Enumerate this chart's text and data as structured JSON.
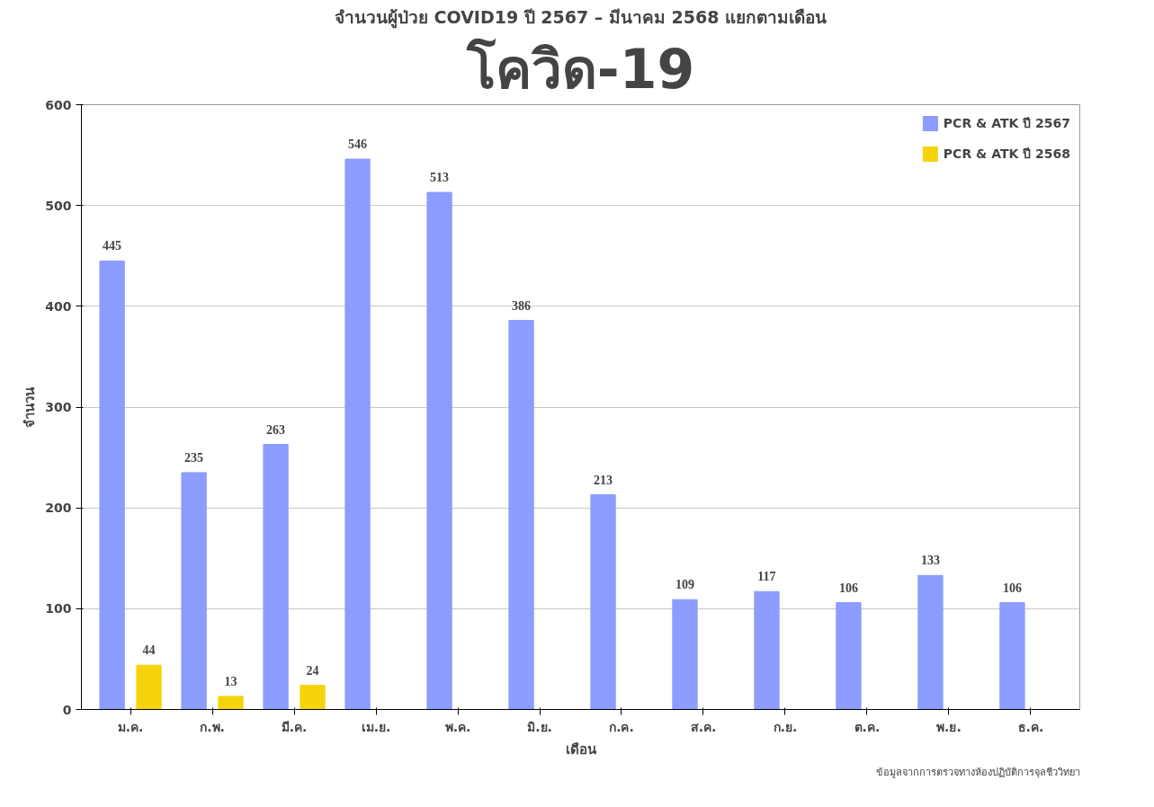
{
  "chart_data": {
    "type": "bar",
    "title": "จำนวนผู้ป่วย COVID19 ปี 2567 – มีนาคม 2568 แยกตามเดือน",
    "subtitle": "โควิด-19",
    "xlabel": "เดือน",
    "ylabel": "จำนวน",
    "categories": [
      "ม.ค.",
      "ก.พ.",
      "มี.ค.",
      "เม.ย.",
      "พ.ค.",
      "มิ.ย.",
      "ก.ค.",
      "ส.ค.",
      "ก.ย.",
      "ต.ค.",
      "พ.ย.",
      "ธ.ค."
    ],
    "series": [
      {
        "name": "PCR & ATK ปี 2567",
        "color": "#8c9cff",
        "values": [
          445,
          235,
          263,
          546,
          513,
          386,
          213,
          109,
          117,
          106,
          133,
          106
        ]
      },
      {
        "name": "PCR & ATK ปี 2568",
        "color": "#f5d40c",
        "values": [
          44,
          13,
          24,
          null,
          null,
          null,
          null,
          null,
          null,
          null,
          null,
          null
        ]
      }
    ],
    "ylim": [
      0,
      600
    ],
    "yticks": [
      0,
      100,
      200,
      300,
      400,
      500,
      600
    ],
    "grid": "y",
    "legend": "top right",
    "data_labels": true,
    "annotations": [
      "ข้อมูลจากการตรวจทางห้องปฏิบัติการจุลชีววิทยา"
    ]
  }
}
